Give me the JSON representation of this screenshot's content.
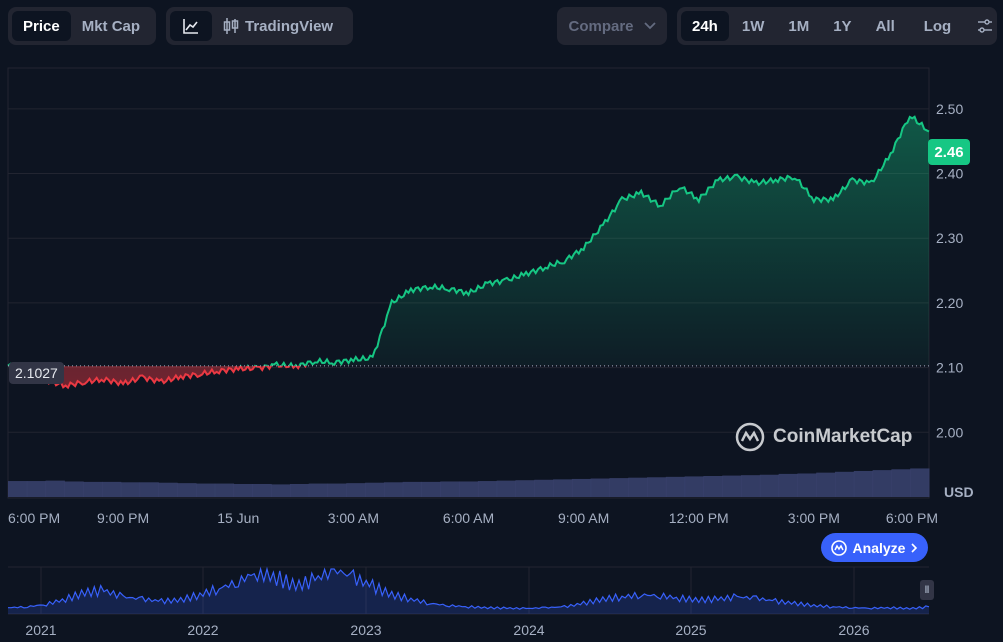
{
  "toolbar": {
    "view_tabs": [
      {
        "label": "Price",
        "active": true
      },
      {
        "label": "Mkt Cap",
        "active": false
      }
    ],
    "tradingview_label": "TradingView",
    "compare_label": "Compare",
    "ranges": [
      {
        "label": "24h",
        "active": true
      },
      {
        "label": "1W",
        "active": false
      },
      {
        "label": "1M",
        "active": false
      },
      {
        "label": "1Y",
        "active": false
      },
      {
        "label": "All",
        "active": false
      }
    ],
    "log_label": "Log"
  },
  "watermark": "CoinMarketCap",
  "analyze_label": "Analyze",
  "currency_label": "USD",
  "current_price_label": "2.46",
  "open_price_label": "2.1027",
  "colors": {
    "up": "#16c784",
    "down": "#ea3943",
    "volume": "#3b4370",
    "overview": "#3861fb"
  },
  "chart_data": [
    {
      "type": "line",
      "title": "",
      "ylim": [
        1.9,
        2.56
      ],
      "y_ticks": [
        2.0,
        2.1,
        2.2,
        2.3,
        2.4,
        2.5
      ],
      "y_tick_labels": [
        "2.00",
        "2.10",
        "2.20",
        "2.30",
        "2.40",
        "2.50"
      ],
      "x_tick_labels": [
        "6:00 PM",
        "9:00 PM",
        "15 Jun",
        "3:00 AM",
        "6:00 AM",
        "9:00 AM",
        "12:00 PM",
        "3:00 PM",
        "6:00 PM"
      ],
      "baseline": 2.1027,
      "x_hours": [
        0,
        0.5,
        1,
        1.5,
        2,
        2.5,
        3,
        3.5,
        4,
        4.5,
        5,
        5.5,
        6,
        6.5,
        7,
        7.5,
        8,
        8.5,
        9,
        9.5,
        10,
        10.5,
        11,
        11.5,
        12,
        12.5,
        13,
        13.5,
        14,
        14.5,
        15,
        15.5,
        16,
        16.5,
        17,
        17.5,
        18,
        18.5,
        19,
        19.5,
        20,
        20.5,
        21,
        21.5,
        22,
        22.5,
        23,
        23.5,
        24
      ],
      "series": [
        {
          "values": [
            2.103,
            2.097,
            2.08,
            2.072,
            2.078,
            2.082,
            2.075,
            2.085,
            2.078,
            2.086,
            2.09,
            2.095,
            2.098,
            2.099,
            2.104,
            2.102,
            2.11,
            2.108,
            2.112,
            2.115,
            2.2,
            2.22,
            2.225,
            2.222,
            2.215,
            2.23,
            2.235,
            2.245,
            2.255,
            2.265,
            2.285,
            2.32,
            2.36,
            2.37,
            2.35,
            2.38,
            2.36,
            2.39,
            2.395,
            2.385,
            2.39,
            2.395,
            2.36,
            2.36,
            2.39,
            2.385,
            2.43,
            2.49,
            2.465
          ]
        }
      ],
      "volume": [
        0.38,
        0.38,
        0.39,
        0.37,
        0.36,
        0.36,
        0.35,
        0.35,
        0.34,
        0.33,
        0.32,
        0.32,
        0.31,
        0.31,
        0.3,
        0.31,
        0.32,
        0.32,
        0.33,
        0.34,
        0.35,
        0.36,
        0.36,
        0.37,
        0.37,
        0.38,
        0.39,
        0.4,
        0.41,
        0.42,
        0.43,
        0.44,
        0.45,
        0.46,
        0.47,
        0.48,
        0.49,
        0.5,
        0.51,
        0.52,
        0.53,
        0.55,
        0.56,
        0.58,
        0.6,
        0.62,
        0.64,
        0.66,
        0.68
      ]
    },
    {
      "type": "area",
      "x_tick_labels": [
        "2021",
        "2022",
        "2023",
        "2024",
        "2025",
        "2026"
      ],
      "series": [
        {
          "values": [
            0.1,
            0.12,
            0.18,
            0.3,
            0.45,
            0.5,
            0.35,
            0.3,
            0.25,
            0.28,
            0.4,
            0.55,
            0.7,
            0.95,
            0.8,
            0.6,
            0.75,
            1.0,
            0.8,
            0.6,
            0.4,
            0.3,
            0.2,
            0.15,
            0.12,
            0.1,
            0.09,
            0.08,
            0.1,
            0.12,
            0.2,
            0.3,
            0.35,
            0.4,
            0.38,
            0.32,
            0.28,
            0.3,
            0.35,
            0.32,
            0.25,
            0.2,
            0.15,
            0.12,
            0.1,
            0.09,
            0.1,
            0.08,
            0.12
          ]
        }
      ]
    }
  ]
}
